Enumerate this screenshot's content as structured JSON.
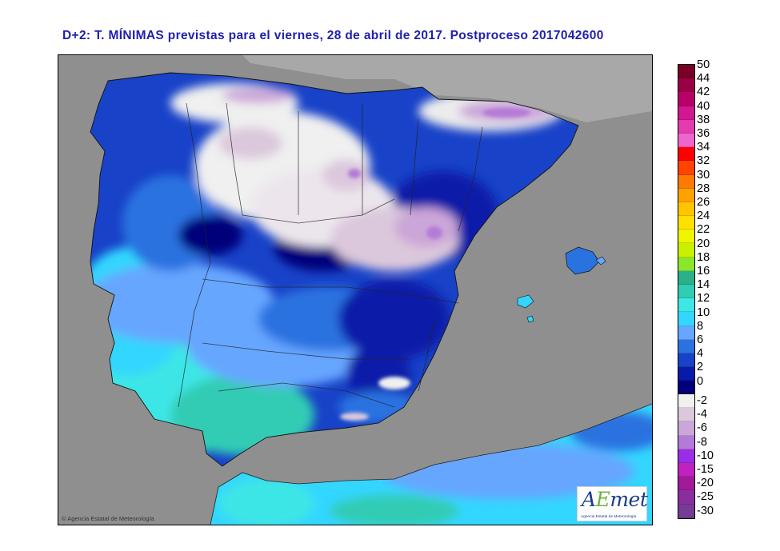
{
  "title": "D+2: T. MÍNIMAS previstas para el viernes, 28 de abril de 2017. Postproceso 2017042600",
  "copyright": "© Agencia Estatal de Meteorología",
  "logo": {
    "brand": "AEmet",
    "subtitle": "Agencia Estatal de Meteorología"
  },
  "legend": {
    "positive": [
      {
        "label": "50",
        "color": "#7a0026"
      },
      {
        "label": "44",
        "color": "#9b0046"
      },
      {
        "label": "42",
        "color": "#b9006a"
      },
      {
        "label": "40",
        "color": "#d11890"
      },
      {
        "label": "38",
        "color": "#e23cb0"
      },
      {
        "label": "36",
        "color": "#ee66cc"
      },
      {
        "label": "34",
        "color": "#ff0000"
      },
      {
        "label": "32",
        "color": "#ff4400"
      },
      {
        "label": "30",
        "color": "#ff7a00"
      },
      {
        "label": "28",
        "color": "#ffa200"
      },
      {
        "label": "26",
        "color": "#ffc600"
      },
      {
        "label": "24",
        "color": "#ffe000"
      },
      {
        "label": "22",
        "color": "#f0f500"
      },
      {
        "label": "20",
        "color": "#c8f000"
      },
      {
        "label": "18",
        "color": "#8ae62a"
      },
      {
        "label": "16",
        "color": "#2ab08a"
      },
      {
        "label": "14",
        "color": "#30ccb4"
      },
      {
        "label": "12",
        "color": "#3ee6e6"
      },
      {
        "label": "10",
        "color": "#33d6ff"
      },
      {
        "label": "8",
        "color": "#66a6ff"
      },
      {
        "label": "6",
        "color": "#2a72e0"
      },
      {
        "label": "4",
        "color": "#1842c8"
      },
      {
        "label": "2",
        "color": "#0a1aa8"
      },
      {
        "label": "0",
        "color": "#00007a"
      }
    ],
    "negative": [
      {
        "label": "-2",
        "color": "#f0f0f0"
      },
      {
        "label": "-4",
        "color": "#dcc8dc"
      },
      {
        "label": "-6",
        "color": "#cba6d8"
      },
      {
        "label": "-8",
        "color": "#b47ad8"
      },
      {
        "label": "-10",
        "color": "#9a2ee6"
      },
      {
        "label": "-15",
        "color": "#c022c0"
      },
      {
        "label": "-20",
        "color": "#a01a9a"
      },
      {
        "label": "-25",
        "color": "#8a2e9e"
      },
      {
        "label": "-30",
        "color": "#743c94"
      }
    ]
  },
  "map": {
    "land_outside_color": "#a8a8a8",
    "sea_color": "#8a8a8a"
  }
}
